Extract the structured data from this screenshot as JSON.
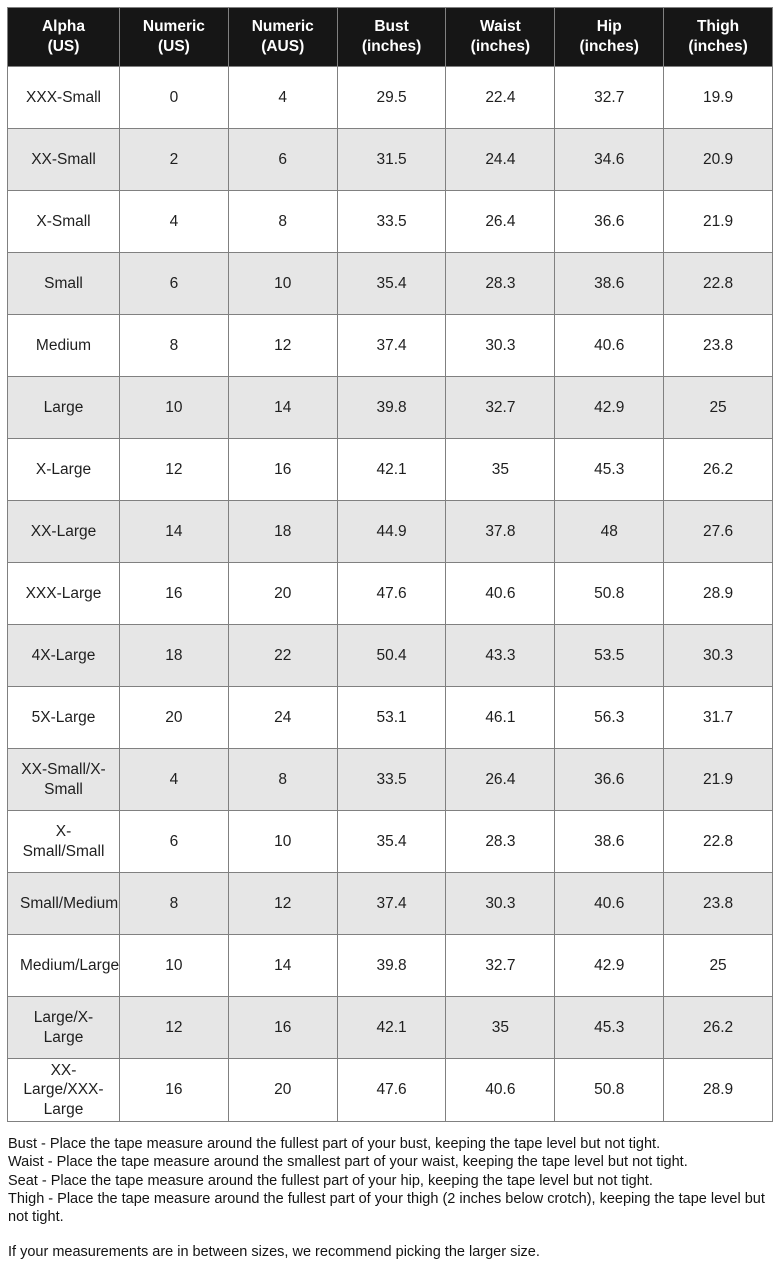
{
  "table": {
    "columns": [
      {
        "line1": "Alpha",
        "line2": "(US)"
      },
      {
        "line1": "Numeric",
        "line2": "(US)"
      },
      {
        "line1": "Numeric",
        "line2": "(AUS)"
      },
      {
        "line1": "Bust",
        "line2": "(inches)"
      },
      {
        "line1": "Waist",
        "line2": "(inches)"
      },
      {
        "line1": "Hip",
        "line2": "(inches)"
      },
      {
        "line1": "Thigh",
        "line2": "(inches)"
      }
    ],
    "rows": [
      [
        "XXX-Small",
        "0",
        "4",
        "29.5",
        "22.4",
        "32.7",
        "19.9"
      ],
      [
        "XX-Small",
        "2",
        "6",
        "31.5",
        "24.4",
        "34.6",
        "20.9"
      ],
      [
        "X-Small",
        "4",
        "8",
        "33.5",
        "26.4",
        "36.6",
        "21.9"
      ],
      [
        "Small",
        "6",
        "10",
        "35.4",
        "28.3",
        "38.6",
        "22.8"
      ],
      [
        "Medium",
        "8",
        "12",
        "37.4",
        "30.3",
        "40.6",
        "23.8"
      ],
      [
        "Large",
        "10",
        "14",
        "39.8",
        "32.7",
        "42.9",
        "25"
      ],
      [
        "X-Large",
        "12",
        "16",
        "42.1",
        "35",
        "45.3",
        "26.2"
      ],
      [
        "XX-Large",
        "14",
        "18",
        "44.9",
        "37.8",
        "48",
        "27.6"
      ],
      [
        "XXX-Large",
        "16",
        "20",
        "47.6",
        "40.6",
        "50.8",
        "28.9"
      ],
      [
        "4X-Large",
        "18",
        "22",
        "50.4",
        "43.3",
        "53.5",
        "30.3"
      ],
      [
        "5X-Large",
        "20",
        "24",
        "53.1",
        "46.1",
        "56.3",
        "31.7"
      ],
      [
        "XX-Small/X-Small",
        "4",
        "8",
        "33.5",
        "26.4",
        "36.6",
        "21.9"
      ],
      [
        "X-Small/Small",
        "6",
        "10",
        "35.4",
        "28.3",
        "38.6",
        "22.8"
      ],
      [
        "Small/Medium",
        "8",
        "12",
        "37.4",
        "30.3",
        "40.6",
        "23.8"
      ],
      [
        "Medium/Large",
        "10",
        "14",
        "39.8",
        "32.7",
        "42.9",
        "25"
      ],
      [
        "Large/X-Large",
        "12",
        "16",
        "42.1",
        "35",
        "45.3",
        "26.2"
      ],
      [
        "XX-Large/XXX-Large",
        "16",
        "20",
        "47.6",
        "40.6",
        "50.8",
        "28.9"
      ]
    ]
  },
  "notes": {
    "definitions": [
      "Bust - Place the tape measure around the fullest part of your bust, keeping the tape level but not tight.",
      "Waist - Place the tape measure around the smallest part of your waist, keeping the tape level but not tight.",
      "Seat - Place the tape measure around the fullest part of your hip, keeping the tape level but not tight.",
      "Thigh - Place the tape measure around the fullest part of your thigh (2 inches below crotch), keeping the tape level but not tight."
    ],
    "sizing_tip": "If your measurements are in between sizes, we recommend picking the larger size."
  },
  "colors": {
    "header_bg": "#161616",
    "header_text": "#ffffff",
    "row_alt_bg": "#e6e6e6",
    "border": "#808080",
    "outer_border": "#4d4d4d",
    "text": "#1f1f1f"
  }
}
